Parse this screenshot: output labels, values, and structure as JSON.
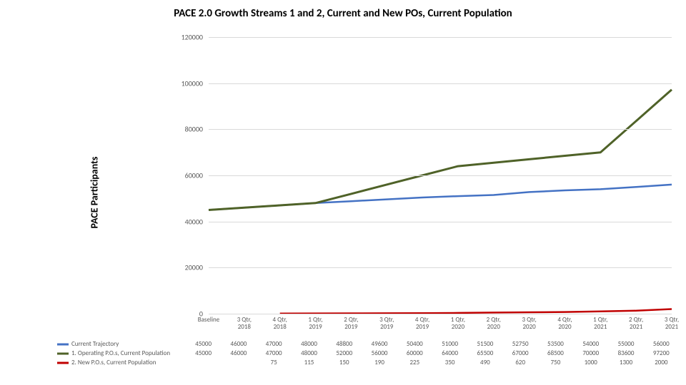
{
  "title": "PACE 2.0 Growth Streams 1 and 2, Current and New POs, Current Population",
  "ylabel": "PACE Participants",
  "chart": {
    "type": "line",
    "ylim": [
      0,
      120000
    ],
    "ytick_step": 20000,
    "yticks": [
      "0",
      "20000",
      "40000",
      "60000",
      "80000",
      "100000",
      "120000"
    ],
    "categories": [
      "Baseline",
      "3 Qtr, 2018",
      "4 Qtr, 2018",
      "1 Qtr, 2019",
      "2 Qtr, 2019",
      "3 Qtr, 2019",
      "4 Qtr, 2019",
      "1 Qtr, 2020",
      "2 Qtr, 2020",
      "3 Qtr, 2020",
      "4 Qtr, 2020",
      "1 Qtr, 2021",
      "2 Qtr, 2021",
      "3 Qtr, 2021"
    ],
    "grid_color": "#d9d9d9",
    "background_color": "#ffffff",
    "series": [
      {
        "name": "Current Trajectory",
        "color": "#4472c4",
        "width": 2.5,
        "values": [
          45000,
          46000,
          47000,
          48000,
          48800,
          49600,
          50400,
          51000,
          51500,
          52750,
          53500,
          54000,
          55000,
          56000
        ]
      },
      {
        "name": "1. Operating P.O.s, Current Population",
        "color": "#4f6228",
        "width": 3,
        "values": [
          45000,
          46000,
          47000,
          48000,
          52000,
          56000,
          60000,
          64000,
          65500,
          67000,
          68500,
          70000,
          83600,
          97200
        ]
      },
      {
        "name": "2. New P.O.s, Current Population",
        "color": "#c00000",
        "width": 2.5,
        "values": [
          null,
          null,
          75,
          115,
          150,
          190,
          225,
          350,
          490,
          620,
          750,
          1000,
          1300,
          2000
        ]
      }
    ]
  },
  "table": {
    "header": [
      "",
      "Baseline",
      "3 Qtr, 2018",
      "4 Qtr, 2018",
      "1 Qtr, 2019",
      "2 Qtr, 2019",
      "3 Qtr, 2019",
      "4 Qtr, 2019",
      "1 Qtr, 2020",
      "2 Qtr, 2020",
      "3 Qtr, 2020",
      "4 Qtr, 2020",
      "1 Qtr, 2021",
      "2 Qtr, 2021",
      "3 Qtr, 2021"
    ]
  }
}
